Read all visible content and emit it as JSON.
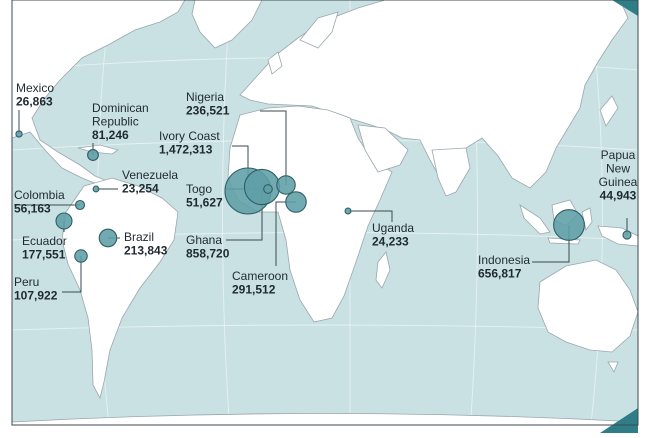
{
  "colors": {
    "ocean": "#c9e1e3",
    "land": "#ffffff",
    "bubble_fill": "#5f9ea6",
    "bubble_stroke": "#2f5f66",
    "corner_accent": "#2f7d86"
  },
  "bubbles": [
    {
      "id": "mexico",
      "name": "Mexico",
      "value": "26,863",
      "amount": 26863
    },
    {
      "id": "dominican-republic",
      "name_lines": [
        "Dominican",
        "Republic"
      ],
      "value": "81,246",
      "amount": 81246
    },
    {
      "id": "venezuela",
      "name": "Venezuela",
      "value": "23,254",
      "amount": 23254
    },
    {
      "id": "colombia",
      "name": "Colombia",
      "value": "56,163",
      "amount": 56163
    },
    {
      "id": "ecuador",
      "name": "Ecuador",
      "value": "177,551",
      "amount": 177551
    },
    {
      "id": "brazil",
      "name": "Brazil",
      "value": "213,843",
      "amount": 213843
    },
    {
      "id": "peru",
      "name": "Peru",
      "value": "107,922",
      "amount": 107922
    },
    {
      "id": "nigeria",
      "name": "Nigeria",
      "value": "236,521",
      "amount": 236521
    },
    {
      "id": "ivory-coast",
      "name": "Ivory Coast",
      "value": "1,472,313",
      "amount": 1472313
    },
    {
      "id": "togo",
      "name": "Togo",
      "value": "51,627",
      "amount": 51627
    },
    {
      "id": "ghana",
      "name": "Ghana",
      "value": "858,720",
      "amount": 858720
    },
    {
      "id": "cameroon",
      "name": "Cameroon",
      "value": "291,512",
      "amount": 291512
    },
    {
      "id": "uganda",
      "name": "Uganda",
      "value": "24,233",
      "amount": 24233
    },
    {
      "id": "indonesia",
      "name": "Indonesia",
      "value": "656,817",
      "amount": 656817
    },
    {
      "id": "papua-new-guinea",
      "name_lines": [
        "Papua",
        "New",
        "Guinea"
      ],
      "value": "44,943",
      "amount": 44943
    }
  ]
}
